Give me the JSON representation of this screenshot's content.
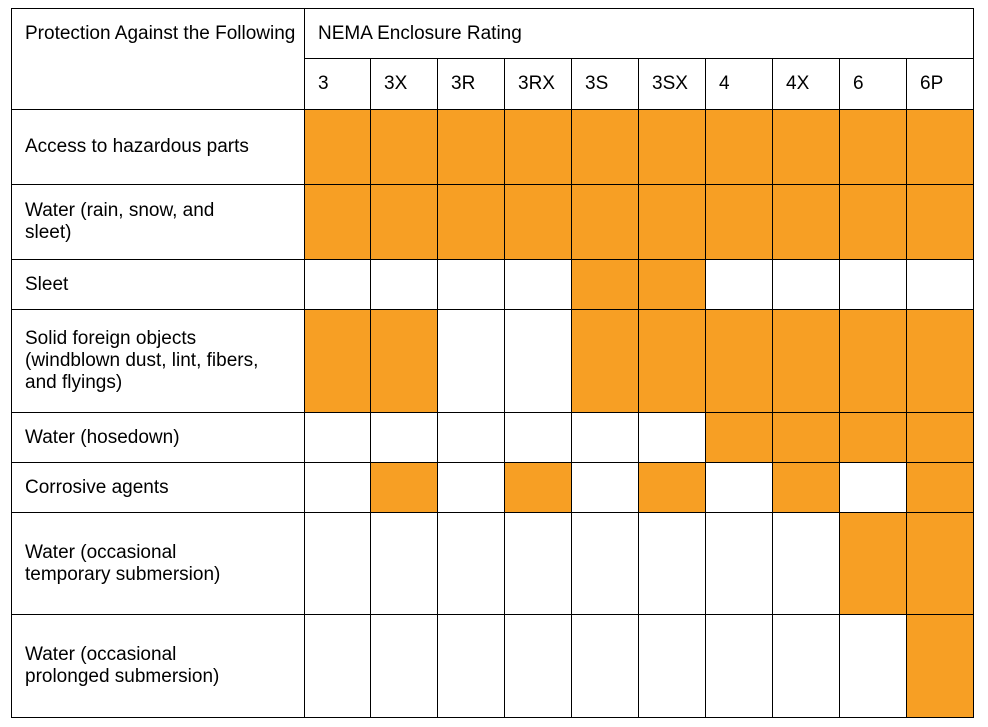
{
  "table": {
    "corner_label": "Protection Against the Following",
    "group_header": "NEMA Enclosure Rating",
    "columns": [
      "3",
      "3X",
      "3R",
      "3RX",
      "3S",
      "3SX",
      "4",
      "4X",
      "6",
      "6P"
    ],
    "fill_color": "#F79F24",
    "rows": [
      {
        "label": "Access to hazardous parts",
        "protected": [
          true,
          true,
          true,
          true,
          true,
          true,
          true,
          true,
          true,
          true
        ]
      },
      {
        "label": "Water (rain, snow, and sleet)",
        "protected": [
          true,
          true,
          true,
          true,
          true,
          true,
          true,
          true,
          true,
          true
        ]
      },
      {
        "label": "Sleet",
        "protected": [
          false,
          false,
          false,
          false,
          true,
          true,
          false,
          false,
          false,
          false
        ]
      },
      {
        "label": "Solid foreign objects (windblown dust, lint, fibers, and flyings)",
        "protected": [
          true,
          true,
          false,
          false,
          true,
          true,
          true,
          true,
          true,
          true
        ]
      },
      {
        "label": "Water (hosedown)",
        "protected": [
          false,
          false,
          false,
          false,
          false,
          false,
          true,
          true,
          true,
          true
        ]
      },
      {
        "label": "Corrosive agents",
        "protected": [
          false,
          true,
          false,
          true,
          false,
          true,
          false,
          true,
          false,
          true
        ]
      },
      {
        "label": "Water (occasional temporary submersion)",
        "protected": [
          false,
          false,
          false,
          false,
          false,
          false,
          false,
          false,
          true,
          true
        ]
      },
      {
        "label": "Water (occasional prolonged submersion)",
        "protected": [
          false,
          false,
          false,
          false,
          false,
          false,
          false,
          false,
          false,
          true
        ]
      }
    ]
  }
}
